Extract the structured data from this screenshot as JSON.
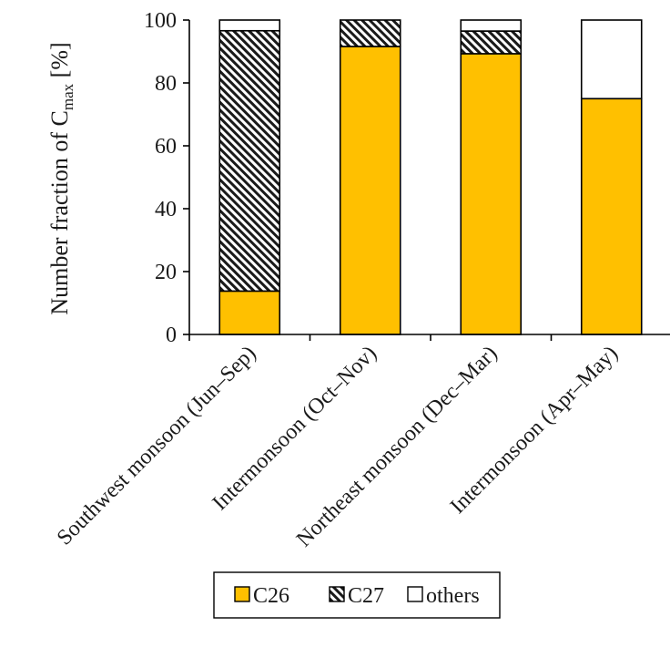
{
  "chart_data": {
    "type": "bar",
    "stacked": true,
    "categories": [
      "Southwest monsoon (Jun–Sep)",
      "Intermonsoon (Oct–Nov)",
      "Northeast monsoon (Dec–Mar)",
      "Intermonsoon (Apr–May)"
    ],
    "series": [
      {
        "name": "C26",
        "values": [
          13.8,
          91.6,
          89.3,
          75.0
        ],
        "color": "#FFC000",
        "pattern": "solid"
      },
      {
        "name": "C27",
        "values": [
          82.8,
          8.4,
          7.2,
          0.0
        ],
        "color": "#000000",
        "pattern": "diagonal-hatch"
      },
      {
        "name": "others",
        "values": [
          3.4,
          0.0,
          3.5,
          25.0
        ],
        "color": "#FFFFFF",
        "pattern": "solid"
      }
    ],
    "ylabel_main": "Number fraction of C",
    "ylabel_sub": "max",
    "ylabel_unit": " [%]",
    "ylim": [
      0,
      100
    ],
    "yticks": [
      0,
      20,
      40,
      60,
      80,
      100
    ],
    "grid": false,
    "legend_position": "bottom"
  }
}
